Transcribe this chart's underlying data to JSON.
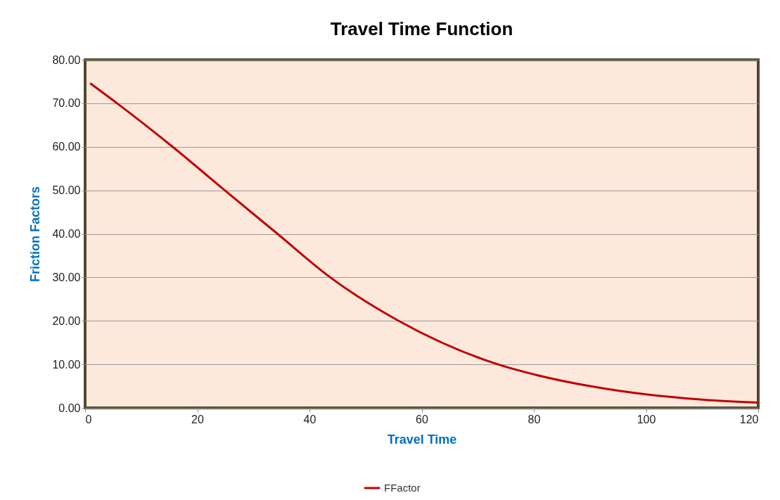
{
  "chart_data": {
    "type": "line",
    "title": "Travel Time Function",
    "xlabel": "Travel Time",
    "ylabel": "Friction Factors",
    "series": [
      {
        "name": "FFactor",
        "color": "#c00000",
        "x": [
          1,
          5.7,
          15.6,
          24.9,
          34.3,
          43.7,
          55.9,
          73.6,
          80,
          90,
          100,
          110,
          120
        ],
        "values": [
          74.5,
          70,
          60,
          50,
          40,
          30,
          20,
          10,
          7.7,
          5.0,
          3.1,
          1.9,
          1.2
        ]
      }
    ],
    "xlim": [
      0,
      120
    ],
    "xticks": [
      0,
      20,
      40,
      60,
      80,
      100,
      120
    ],
    "ylim": [
      0,
      80
    ],
    "yticks": [
      {
        "value": 0,
        "label": "0.00"
      },
      {
        "value": 10,
        "label": "10.00"
      },
      {
        "value": 20,
        "label": "20.00"
      },
      {
        "value": 30,
        "label": "30.00"
      },
      {
        "value": 40,
        "label": "40.00"
      },
      {
        "value": 50,
        "label": "50.00"
      },
      {
        "value": 60,
        "label": "60.00"
      },
      {
        "value": 70,
        "label": "70.00"
      },
      {
        "value": 80,
        "label": "80.00"
      }
    ],
    "grid": "y",
    "legend": "bottom",
    "marker": "none",
    "line_style": "solid"
  }
}
